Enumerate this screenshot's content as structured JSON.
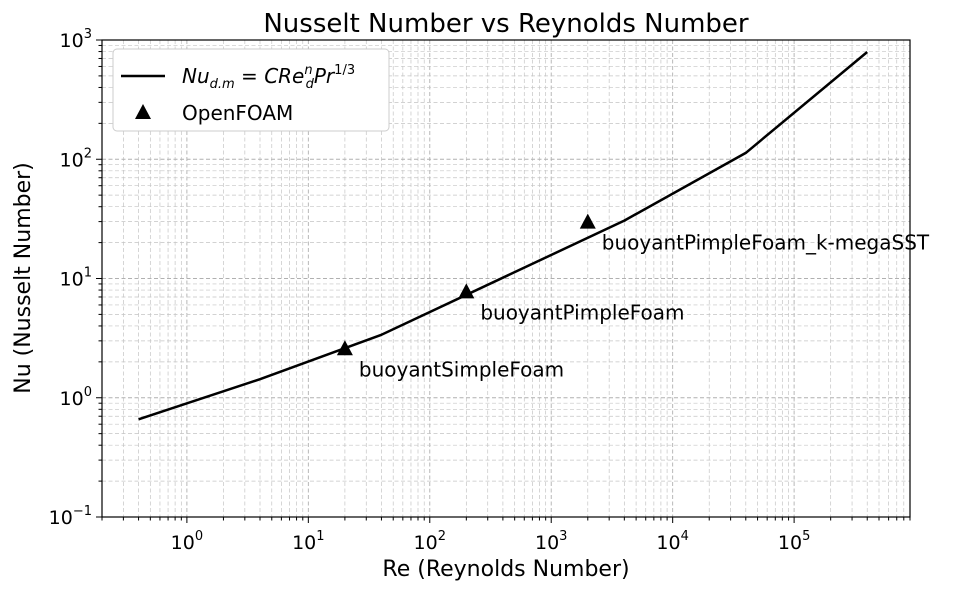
{
  "chart_data": {
    "type": "line",
    "title": "Nusselt Number vs Reynolds Number",
    "xlabel": "Re (Reynolds Number)",
    "ylabel": "Nu (Nusselt Number)",
    "xscale": "log",
    "yscale": "log",
    "xlim": [
      0.2,
      900000
    ],
    "ylim": [
      0.1,
      1000
    ],
    "x_ticks": [
      {
        "base": "10",
        "exp": "0"
      },
      {
        "base": "10",
        "exp": "1"
      },
      {
        "base": "10",
        "exp": "2"
      },
      {
        "base": "10",
        "exp": "3"
      },
      {
        "base": "10",
        "exp": "4"
      },
      {
        "base": "10",
        "exp": "5"
      }
    ],
    "y_ticks": [
      {
        "base": "10",
        "exp": "−1"
      },
      {
        "base": "10",
        "exp": "0"
      },
      {
        "base": "10",
        "exp": "1"
      },
      {
        "base": "10",
        "exp": "2"
      },
      {
        "base": "10",
        "exp": "3"
      }
    ],
    "grid": true,
    "legend_position": "top-left",
    "line_color": "#000000",
    "marker_color": "#000000",
    "series": [
      {
        "name": "Nu_{d.m} = C Re_d^n Pr^{1/3}",
        "kind": "line",
        "x": [
          0.4,
          4,
          4,
          40,
          40,
          4000,
          4000,
          40000,
          40000,
          400000
        ],
        "y": [
          0.66,
          1.43,
          1.43,
          3.37,
          3.37,
          30.6,
          30.6,
          113,
          113,
          793
        ]
      },
      {
        "name": "OpenFOAM",
        "kind": "scatter",
        "marker": "triangle",
        "x": [
          20,
          200,
          2000
        ],
        "y": [
          2.6,
          7.8,
          30
        ],
        "labels": [
          "buoyantSimpleFoam",
          "buoyantPimpleFoam",
          "buoyantPimpleFoam_k-megaSST"
        ]
      }
    ]
  }
}
